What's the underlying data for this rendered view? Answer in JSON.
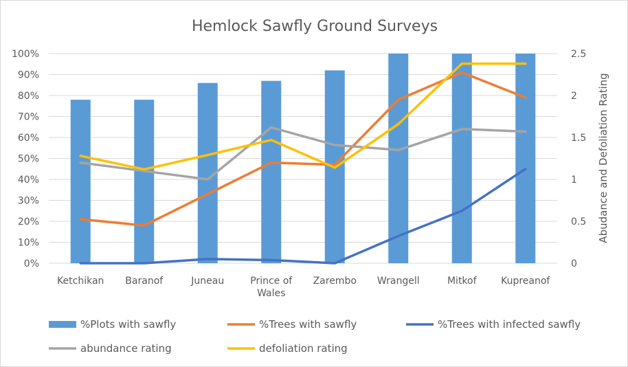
{
  "chart_data": {
    "type": "bar",
    "title": "Hemlock Sawfly Ground Surveys",
    "categories": [
      "Ketchikan",
      "Baranof",
      "Juneau",
      "Prince of Wales",
      "Zarembo",
      "Wrangell",
      "Mitkof",
      "Kupreanof"
    ],
    "category_lines": [
      [
        "Ketchikan"
      ],
      [
        "Baranof"
      ],
      [
        "Juneau"
      ],
      [
        "Prince of",
        "Wales"
      ],
      [
        "Zarembo"
      ],
      [
        "Wrangell"
      ],
      [
        "Mitkof"
      ],
      [
        "Kupreanof"
      ]
    ],
    "y_left": {
      "ylim": [
        0,
        1
      ],
      "ticks": [
        0,
        0.1,
        0.2,
        0.3,
        0.4,
        0.5,
        0.6,
        0.7,
        0.8,
        0.9,
        1.0
      ],
      "tick_labels": [
        "0%",
        "10%",
        "20%",
        "30%",
        "40%",
        "50%",
        "60%",
        "70%",
        "80%",
        "90%",
        "100%"
      ]
    },
    "y_right": {
      "ylabel": "Abudance and Defoliation Rating",
      "ylim": [
        0,
        2.5
      ],
      "ticks": [
        0,
        0.5,
        1,
        1.5,
        2,
        2.5
      ],
      "tick_labels": [
        "0",
        "0.5",
        "1",
        "1.5",
        "2",
        "2.5"
      ]
    },
    "grid": true,
    "legend_position": "bottom",
    "series": [
      {
        "name": "%Plots with sawfly",
        "kind": "bar",
        "axis": "left",
        "color": "#5B9BD5",
        "values": [
          0.78,
          0.78,
          0.86,
          0.87,
          0.92,
          1.0,
          1.0,
          1.0
        ]
      },
      {
        "name": "%Trees with sawfly",
        "kind": "line",
        "axis": "left",
        "color": "#ED7D31",
        "values": [
          0.21,
          0.18,
          0.33,
          0.48,
          0.47,
          0.78,
          0.91,
          0.79
        ]
      },
      {
        "name": "%Trees with infected sawfly",
        "kind": "line",
        "axis": "left",
        "color": "#4472C4",
        "values": [
          0.0,
          0.0,
          0.02,
          0.015,
          0.0,
          0.13,
          0.25,
          0.45
        ]
      },
      {
        "name": "abundance rating",
        "kind": "line",
        "axis": "right",
        "color": "#A5A5A5",
        "values": [
          1.2,
          1.1,
          1.0,
          1.62,
          1.41,
          1.35,
          1.6,
          1.57
        ]
      },
      {
        "name": "defoliation rating",
        "kind": "line",
        "axis": "right",
        "color": "#FFC000",
        "values": [
          1.28,
          1.12,
          1.29,
          1.47,
          1.14,
          1.66,
          2.38,
          2.38
        ]
      }
    ]
  }
}
